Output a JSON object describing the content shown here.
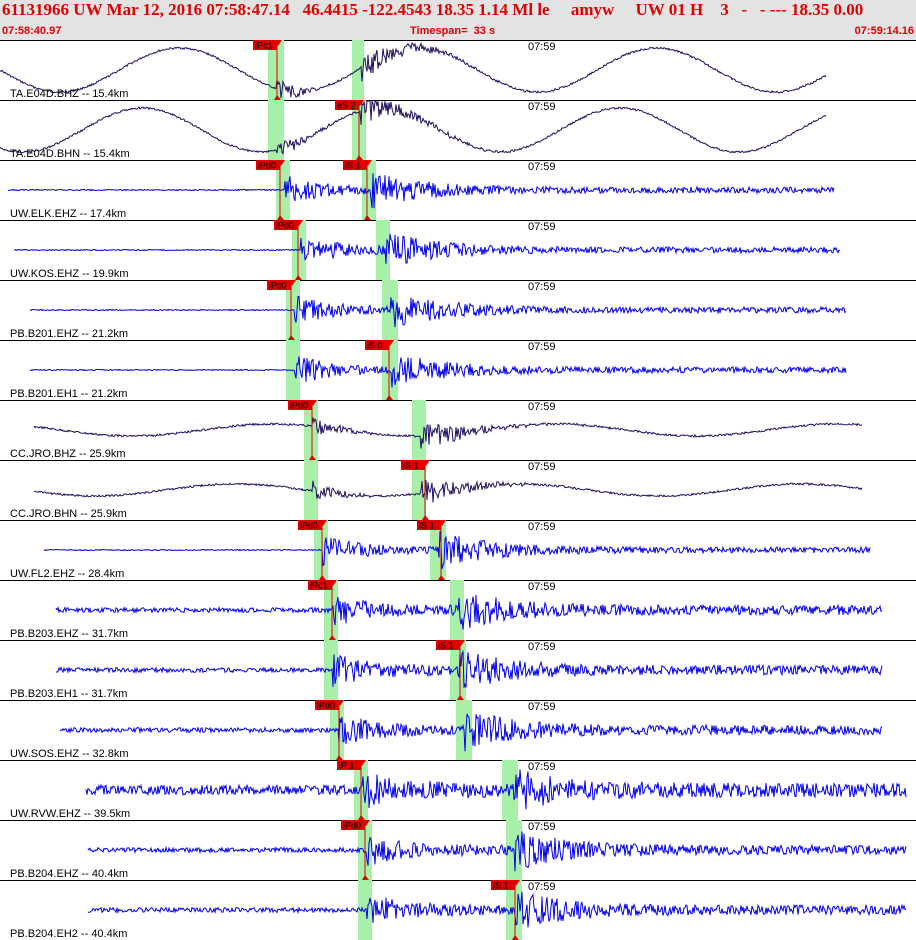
{
  "header": {
    "title": "61131966 UW Mar 12, 2016 07:58:47.14   46.4415 -122.4543 18.35 1.14 Ml le     amyw     UW 01 H    3   -   - --- 18.35 0.00",
    "start_time": "07:58:40.97",
    "timespan": "Timespan=  33 s",
    "end_time": "07:59:14.16"
  },
  "colors": {
    "header_bg": "#e3e3e3",
    "header_text": "#e00000",
    "trace_blue": "#0000ee",
    "trace_dark": "#201060",
    "pick_flag": "#e00000",
    "pick_window": "#a8f0a8"
  },
  "traces": [
    {
      "station": "TA.E04D.BHZ -- 15.4km",
      "minute": "07:59",
      "color": "dark",
      "picks": [
        {
          "label": "iPc1",
          "pos": 0.302
        }
      ]
    },
    {
      "station": "TA.E04D.BHN -- 15.4km",
      "minute": "07:59",
      "color": "dark",
      "picks": [
        {
          "label": "eS 2",
          "pos": 0.392
        }
      ]
    },
    {
      "station": "UW.ELK.EHZ -- 17.4km",
      "minute": "07:59",
      "color": "blue",
      "picks": [
        {
          "label": "iPd0",
          "pos": 0.306
        },
        {
          "label": "iS 1",
          "pos": 0.401
        }
      ]
    },
    {
      "station": "UW.KOS.EHZ -- 19.9km",
      "minute": "07:59",
      "color": "blue",
      "picks": [
        {
          "label": "iPd0",
          "pos": 0.325
        }
      ]
    },
    {
      "station": "PB.B201.EHZ -- 21.2km",
      "minute": "07:59",
      "color": "blue",
      "picks": [
        {
          "label": "iPc0",
          "pos": 0.318
        }
      ]
    },
    {
      "station": "PB.B201.EH1 -- 21.2km",
      "minute": "07:59",
      "color": "blue",
      "picks": [
        {
          "label": "iS 0",
          "pos": 0.425
        }
      ]
    },
    {
      "station": "CC.JRO.BHZ -- 25.9km",
      "minute": "07:59",
      "color": "dark",
      "picks": [
        {
          "label": "iPd0",
          "pos": 0.341
        }
      ]
    },
    {
      "station": "CC.JRO.BHN -- 25.9km",
      "minute": "07:59",
      "color": "dark",
      "picks": [
        {
          "label": "iS 1",
          "pos": 0.464
        }
      ]
    },
    {
      "station": "UW.FL2.EHZ -- 28.4km",
      "minute": "07:59",
      "color": "blue",
      "picks": [
        {
          "label": "iPd0",
          "pos": 0.352
        },
        {
          "label": "iS 1",
          "pos": 0.481
        }
      ]
    },
    {
      "station": "PB.B203.EHZ -- 31.7km",
      "minute": "07:59",
      "color": "blue",
      "picks": [
        {
          "label": "iPc1",
          "pos": 0.362
        }
      ]
    },
    {
      "station": "PB.B203.EH1 -- 31.7km",
      "minute": "07:59",
      "color": "blue",
      "picks": [
        {
          "label": "iS 1",
          "pos": 0.502
        }
      ]
    },
    {
      "station": "UW.SOS.EHZ -- 32.8km",
      "minute": "07:59",
      "color": "blue",
      "picks": [
        {
          "label": "iPd0",
          "pos": 0.37
        }
      ]
    },
    {
      "station": "UW.RVW.EHZ -- 39.5km",
      "minute": "07:59",
      "color": "blue",
      "picks": [
        {
          "label": "iP 1",
          "pos": 0.394
        }
      ]
    },
    {
      "station": "PB.B204.EHZ -- 40.4km",
      "minute": "07:59",
      "color": "blue",
      "picks": [
        {
          "label": "iPd0",
          "pos": 0.398
        }
      ]
    },
    {
      "station": "PB.B204.EH2 -- 40.4km",
      "minute": "07:59",
      "color": "blue",
      "picks": [
        {
          "label": "iS 1",
          "pos": 0.562
        }
      ]
    }
  ]
}
